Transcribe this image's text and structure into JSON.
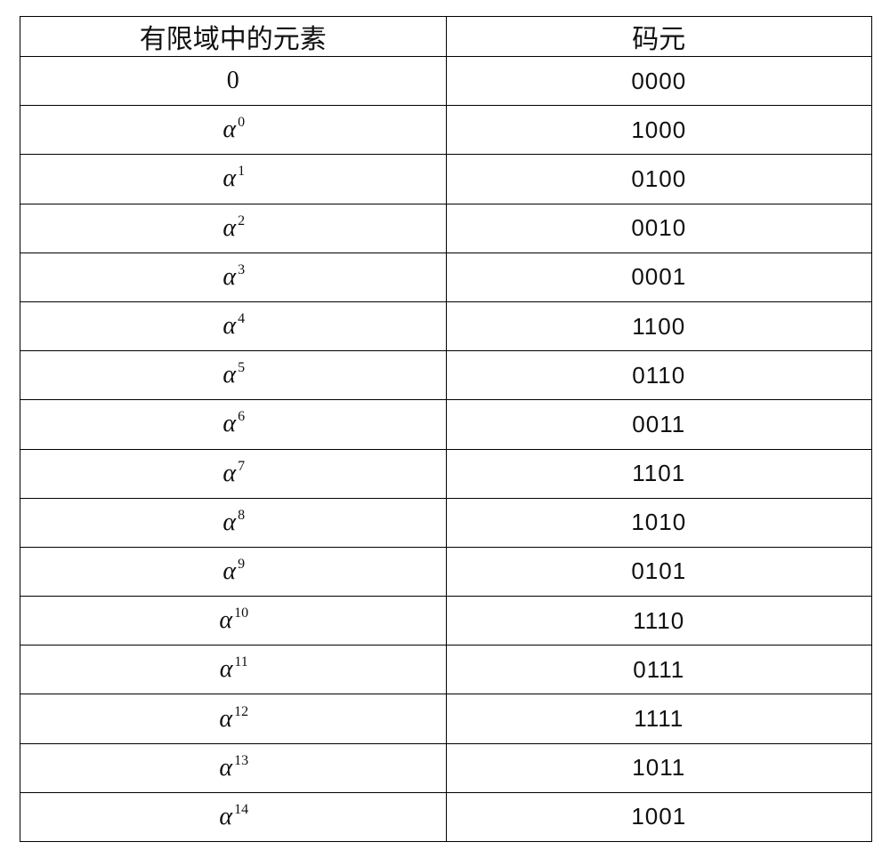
{
  "table": {
    "header": {
      "col1": "有限域中的元素",
      "col2": "码元"
    },
    "rows": [
      {
        "elem_kind": "plain",
        "elem_label": "0",
        "code": "0000"
      },
      {
        "elem_kind": "alpha",
        "alpha_exp": "0",
        "code": "1000"
      },
      {
        "elem_kind": "alpha",
        "alpha_exp": "1",
        "code": "0100"
      },
      {
        "elem_kind": "alpha",
        "alpha_exp": "2",
        "code": "0010"
      },
      {
        "elem_kind": "alpha",
        "alpha_exp": "3",
        "code": "0001"
      },
      {
        "elem_kind": "alpha",
        "alpha_exp": "4",
        "code": "1100"
      },
      {
        "elem_kind": "alpha",
        "alpha_exp": "5",
        "code": "0110"
      },
      {
        "elem_kind": "alpha",
        "alpha_exp": "6",
        "code": "0011"
      },
      {
        "elem_kind": "alpha",
        "alpha_exp": "7",
        "code": "1101"
      },
      {
        "elem_kind": "alpha",
        "alpha_exp": "8",
        "code": "1010"
      },
      {
        "elem_kind": "alpha",
        "alpha_exp": "9",
        "code": "0101"
      },
      {
        "elem_kind": "alpha",
        "alpha_exp": "10",
        "code": "1110"
      },
      {
        "elem_kind": "alpha",
        "alpha_exp": "11",
        "code": "0111"
      },
      {
        "elem_kind": "alpha",
        "alpha_exp": "12",
        "code": "1111"
      },
      {
        "elem_kind": "alpha",
        "alpha_exp": "13",
        "code": "1011"
      },
      {
        "elem_kind": "alpha",
        "alpha_exp": "14",
        "code": "1001"
      }
    ],
    "style": {
      "border_color": "#000000",
      "text_color": "#101010",
      "background_color": "#ffffff",
      "header_font_family": "Microsoft YaHei",
      "body_font_family_elem": "Times New Roman",
      "body_font_family_code": "Arial",
      "header_font_size_pt": 22,
      "elem_font_size_pt": 21,
      "code_font_size_pt": 19,
      "superscript_font_size_pt": 12,
      "alpha_glyph": "α",
      "n_rows_including_header": 17,
      "col_widths_pct": [
        50,
        50
      ]
    }
  }
}
